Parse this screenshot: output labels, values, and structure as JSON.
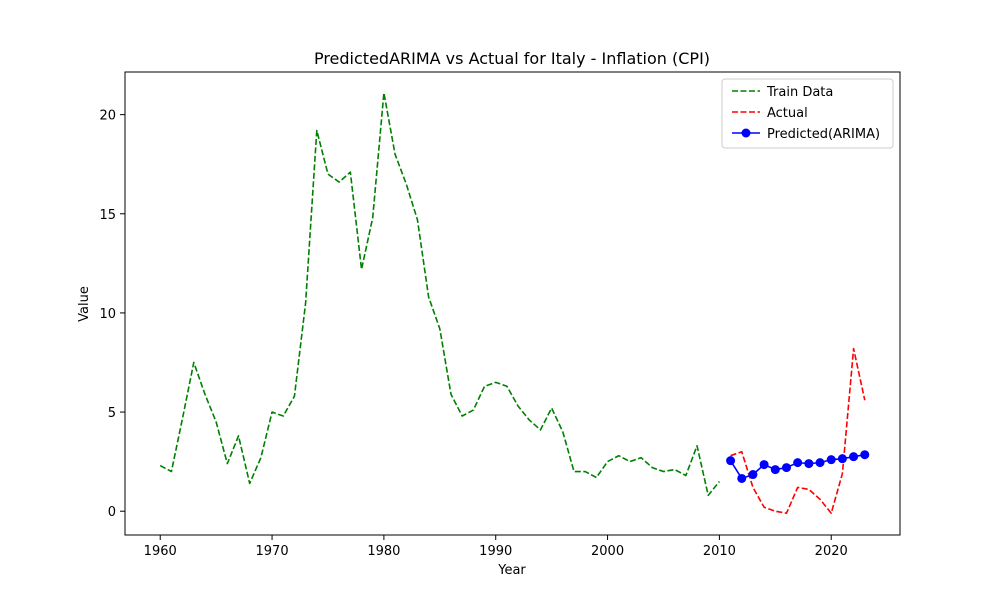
{
  "chart_data": {
    "type": "line",
    "title": "PredictedARIMA vs Actual for Italy - Inflation (CPI)",
    "xlabel": "Year",
    "ylabel": "Value",
    "xlim": [
      1956.85,
      2026.15
    ],
    "ylim": [
      -1.2,
      22.15
    ],
    "xticks": [
      1960,
      1970,
      1980,
      1990,
      2000,
      2010,
      2020
    ],
    "yticks": [
      0,
      5,
      10,
      15,
      20
    ],
    "grid": false,
    "legend_position": "top-right",
    "series": [
      {
        "name": "Train Data",
        "color": "#008000",
        "style": "dashed",
        "marker": "none",
        "x": [
          1960,
          1961,
          1962,
          1963,
          1964,
          1965,
          1966,
          1967,
          1968,
          1969,
          1970,
          1971,
          1972,
          1973,
          1974,
          1975,
          1976,
          1977,
          1978,
          1979,
          1980,
          1981,
          1982,
          1983,
          1984,
          1985,
          1986,
          1987,
          1988,
          1989,
          1990,
          1991,
          1992,
          1993,
          1994,
          1995,
          1996,
          1997,
          1998,
          1999,
          2000,
          2001,
          2002,
          2003,
          2004,
          2005,
          2006,
          2007,
          2008,
          2009,
          2010
        ],
        "values": [
          2.3,
          2.0,
          4.7,
          7.5,
          5.9,
          4.5,
          2.4,
          3.8,
          1.4,
          2.7,
          5.0,
          4.8,
          5.8,
          10.5,
          19.2,
          17.0,
          16.6,
          17.1,
          12.2,
          14.8,
          21.1,
          18.0,
          16.5,
          14.7,
          10.8,
          9.2,
          5.9,
          4.8,
          5.1,
          6.3,
          6.5,
          6.3,
          5.3,
          4.6,
          4.1,
          5.2,
          4.0,
          2.0,
          2.0,
          1.7,
          2.5,
          2.8,
          2.5,
          2.7,
          2.2,
          2.0,
          2.1,
          1.8,
          3.3,
          0.8,
          1.5
        ]
      },
      {
        "name": "Actual",
        "color": "#ff0000",
        "style": "dashed",
        "marker": "none",
        "x": [
          2011,
          2012,
          2013,
          2014,
          2015,
          2016,
          2017,
          2018,
          2019,
          2020,
          2021,
          2022,
          2023
        ],
        "values": [
          2.8,
          3.0,
          1.2,
          0.2,
          0.0,
          -0.1,
          1.2,
          1.1,
          0.6,
          -0.1,
          1.9,
          8.2,
          5.6
        ]
      },
      {
        "name": "Predicted(ARIMA)",
        "color": "#0000ff",
        "style": "solid",
        "marker": "circle",
        "x": [
          2011,
          2012,
          2013,
          2014,
          2015,
          2016,
          2017,
          2018,
          2019,
          2020,
          2021,
          2022,
          2023
        ],
        "values": [
          2.55,
          1.65,
          1.85,
          2.35,
          2.1,
          2.2,
          2.45,
          2.4,
          2.45,
          2.6,
          2.65,
          2.75,
          2.85
        ]
      }
    ]
  }
}
